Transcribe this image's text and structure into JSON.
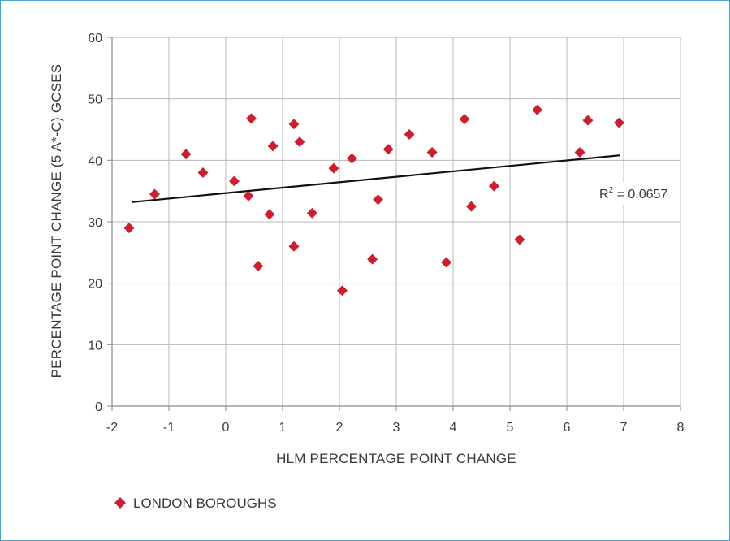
{
  "chart_data": {
    "type": "scatter",
    "xlabel": "HLM PERCENTAGE POINT CHANGE",
    "ylabel": "PERCENTAGE POINT CHANGE (5 A*-C) GCSES",
    "xlim": [
      -2,
      8
    ],
    "ylim": [
      0,
      60
    ],
    "x_ticks": [
      "-2",
      "-1",
      "0",
      "1",
      "2",
      "3",
      "4",
      "5",
      "6",
      "7",
      "8"
    ],
    "y_ticks": [
      "0",
      "10",
      "20",
      "30",
      "40",
      "50",
      "60"
    ],
    "grid": true,
    "legend_position": "bottom-left",
    "series": [
      {
        "name": "LONDON BOROUGHS",
        "color": "#c8202f",
        "marker": "diamond",
        "points": [
          [
            -1.7,
            29
          ],
          [
            -1.25,
            34.5
          ],
          [
            -0.7,
            41
          ],
          [
            -0.4,
            38
          ],
          [
            0.15,
            36.6
          ],
          [
            0.4,
            34.2
          ],
          [
            0.45,
            46.8
          ],
          [
            0.57,
            22.8
          ],
          [
            0.77,
            31.2
          ],
          [
            0.83,
            42.3
          ],
          [
            1.2,
            26
          ],
          [
            1.2,
            45.9
          ],
          [
            1.3,
            43
          ],
          [
            1.52,
            31.4
          ],
          [
            1.9,
            38.7
          ],
          [
            2.05,
            18.8
          ],
          [
            2.22,
            40.3
          ],
          [
            2.58,
            23.9
          ],
          [
            2.68,
            33.6
          ],
          [
            2.86,
            41.8
          ],
          [
            3.23,
            44.2
          ],
          [
            3.63,
            41.3
          ],
          [
            3.88,
            23.4
          ],
          [
            4.2,
            46.7
          ],
          [
            4.32,
            32.5
          ],
          [
            4.72,
            35.8
          ],
          [
            5.17,
            27.1
          ],
          [
            5.48,
            48.2
          ],
          [
            6.23,
            41.3
          ],
          [
            6.37,
            46.5
          ],
          [
            6.92,
            46.1
          ]
        ]
      }
    ],
    "trendline": {
      "x": [
        -1.65,
        6.93
      ],
      "y": [
        33.2,
        40.8
      ],
      "label_base": "R",
      "label_sup": "2",
      "label_value": " = 0.0657"
    }
  }
}
